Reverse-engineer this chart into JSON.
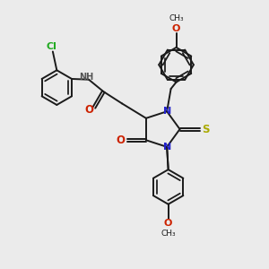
{
  "background_color": "#ebebeb",
  "bond_color": "#1a1a1a",
  "N_color": "#2222cc",
  "O_color": "#cc2200",
  "S_color": "#aaaa00",
  "Cl_color": "#22aa22",
  "figsize": [
    3.0,
    3.0
  ],
  "dpi": 100,
  "xlim": [
    0,
    10
  ],
  "ylim": [
    0,
    10
  ]
}
